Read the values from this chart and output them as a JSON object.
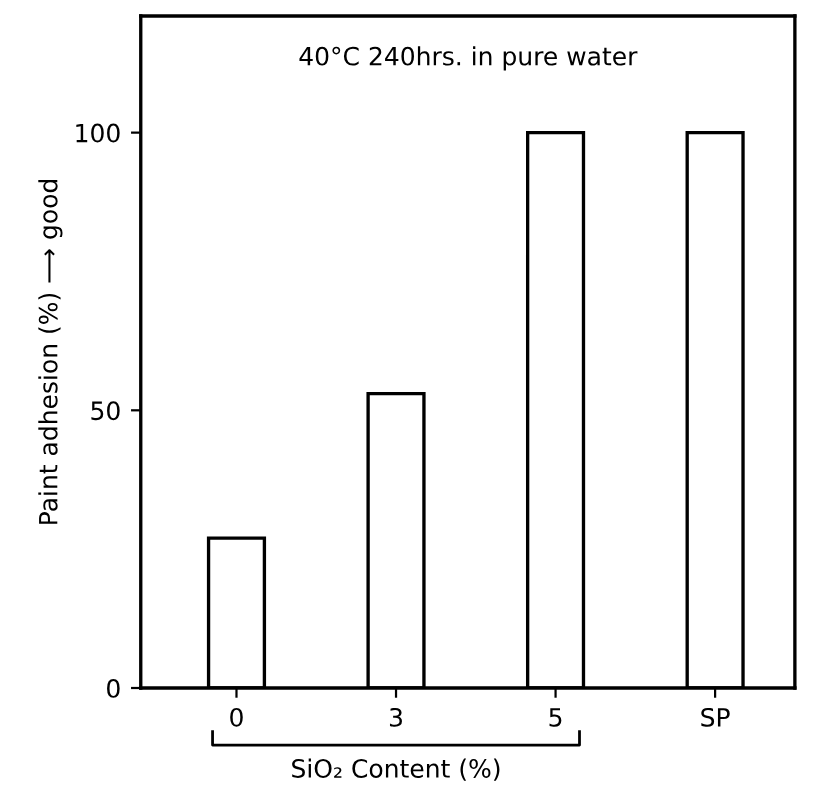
{
  "chart_data": {
    "type": "bar",
    "categories": [
      "0",
      "3",
      "5",
      "SP"
    ],
    "values": [
      27,
      53,
      100,
      100
    ],
    "color": "#ffffff",
    "ylim": [
      0,
      121
    ],
    "yticks": [
      0,
      50,
      100
    ],
    "ylabel": "Paint adhesion (%) ⟶ good",
    "xlabel": "SiO₂ Content (%)",
    "annotations": [
      "40°C 240hrs. in pure water"
    ],
    "grid": false
  }
}
